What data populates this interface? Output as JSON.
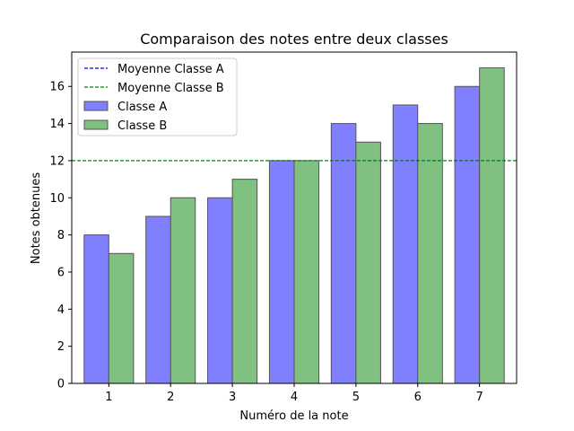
{
  "chart_data": {
    "type": "bar",
    "title": "Comparaison des notes entre deux classes",
    "xlabel": "Numéro de la note",
    "ylabel": "Notes obtenues",
    "categories": [
      "1",
      "2",
      "3",
      "4",
      "5",
      "6",
      "7"
    ],
    "series": [
      {
        "name": "Classe A",
        "values": [
          8,
          9,
          10,
          12,
          14,
          15,
          16
        ],
        "color": "#8080ff"
      },
      {
        "name": "Classe B",
        "values": [
          7,
          10,
          11,
          12,
          13,
          14,
          17
        ],
        "color": "#80c080"
      }
    ],
    "reference_lines": [
      {
        "name": "Moyenne Classe A",
        "value": 12,
        "color": "#0000ff",
        "style": "dashed"
      },
      {
        "name": "Moyenne Classe B",
        "value": 12,
        "color": "#008000",
        "style": "dashed"
      }
    ],
    "yticks": [
      0,
      2,
      4,
      6,
      8,
      10,
      12,
      14,
      16
    ],
    "ylim": [
      0,
      17.85
    ],
    "legend_position": "top-left",
    "grid": false
  }
}
